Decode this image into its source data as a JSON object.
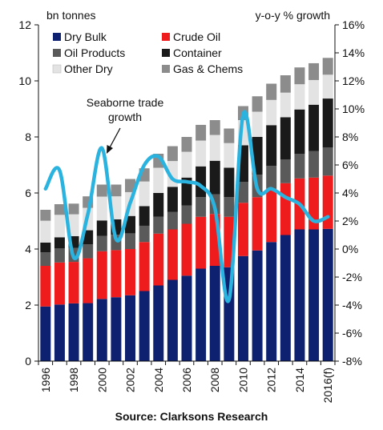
{
  "chart_data": {
    "type": "bar",
    "stacked": true,
    "left_axis_title": "bn tonnes",
    "right_axis_title": "y-o-y % growth",
    "categories": [
      "1996",
      "1997",
      "1998",
      "1999",
      "2000",
      "2001",
      "2002",
      "2003",
      "2004",
      "2005",
      "2006",
      "2007",
      "2008",
      "2009",
      "2010",
      "2011",
      "2012",
      "2013",
      "2014",
      "2015",
      "2016(f)"
    ],
    "x_tick_labels": [
      "1996",
      "",
      "1998",
      "",
      "2000",
      "",
      "2002",
      "",
      "2004",
      "",
      "2006",
      "",
      "2008",
      "",
      "2010",
      "",
      "2012",
      "",
      "2014",
      "",
      "2016(f)"
    ],
    "ylim_left": [
      0,
      12
    ],
    "yticks_left": [
      "0",
      "2",
      "4",
      "6",
      "8",
      "10",
      "12"
    ],
    "ylim_right": [
      -8,
      16
    ],
    "yticks_right": [
      "-8%",
      "-6%",
      "-4%",
      "-2%",
      "0%",
      "2%",
      "4%",
      "6%",
      "8%",
      "10%",
      "12%",
      "14%",
      "16%"
    ],
    "series": [
      {
        "name": "Dry Bulk",
        "color": "#0d2170",
        "values": [
          1.95,
          2.02,
          2.06,
          2.07,
          2.22,
          2.28,
          2.35,
          2.5,
          2.7,
          2.9,
          3.05,
          3.3,
          3.4,
          3.35,
          3.75,
          3.95,
          4.25,
          4.5,
          4.7,
          4.7,
          4.72
        ]
      },
      {
        "name": "Crude Oil",
        "color": "#ee1c1c",
        "values": [
          1.45,
          1.5,
          1.48,
          1.6,
          1.7,
          1.68,
          1.65,
          1.75,
          1.85,
          1.8,
          1.85,
          1.85,
          1.85,
          1.8,
          1.9,
          1.9,
          1.9,
          1.85,
          1.82,
          1.85,
          1.9
        ]
      },
      {
        "name": "Oil Products",
        "color": "#5a5a5a",
        "values": [
          0.48,
          0.5,
          0.5,
          0.5,
          0.55,
          0.55,
          0.56,
          0.58,
          0.6,
          0.62,
          0.65,
          0.7,
          0.7,
          0.7,
          0.75,
          0.8,
          0.82,
          0.85,
          0.88,
          0.95,
          1.0
        ]
      },
      {
        "name": "Container",
        "color": "#1a1a1a",
        "values": [
          0.35,
          0.4,
          0.42,
          0.5,
          0.55,
          0.55,
          0.62,
          0.7,
          0.85,
          0.9,
          1.0,
          1.1,
          1.2,
          1.05,
          1.3,
          1.35,
          1.45,
          1.5,
          1.58,
          1.65,
          1.75
        ]
      },
      {
        "name": "Other Dry",
        "color": "#e3e3e3",
        "values": [
          0.78,
          0.8,
          0.78,
          0.8,
          0.85,
          0.82,
          0.85,
          0.88,
          0.9,
          0.92,
          0.92,
          0.92,
          0.92,
          0.88,
          0.9,
          0.9,
          0.9,
          0.88,
          0.9,
          0.88,
          0.85
        ]
      },
      {
        "name": "Gas & Chems",
        "color": "#8c8c8c",
        "values": [
          0.39,
          0.38,
          0.38,
          0.41,
          0.43,
          0.42,
          0.47,
          0.47,
          0.5,
          0.53,
          0.53,
          0.56,
          0.53,
          0.52,
          0.5,
          0.55,
          0.58,
          0.62,
          0.6,
          0.6,
          0.6
        ]
      }
    ],
    "growth_line": {
      "name": "Seaborne trade growth",
      "color": "#2bb3e0",
      "values": [
        4.3,
        5.6,
        -0.6,
        2.5,
        7.2,
        0.7,
        3.3,
        6.0,
        6.6,
        5.0,
        4.8,
        4.5,
        2.9,
        -3.6,
        9.6,
        4.3,
        4.3,
        3.7,
        3.2,
        2.0,
        2.3
      ]
    },
    "legend": {
      "placement": "top-left",
      "columns": 2
    },
    "annotation": {
      "text_line1": "Seaborne trade",
      "text_line2": "growth",
      "points_to": "2000"
    },
    "grid": false
  },
  "source": "Source: Clarksons Research"
}
